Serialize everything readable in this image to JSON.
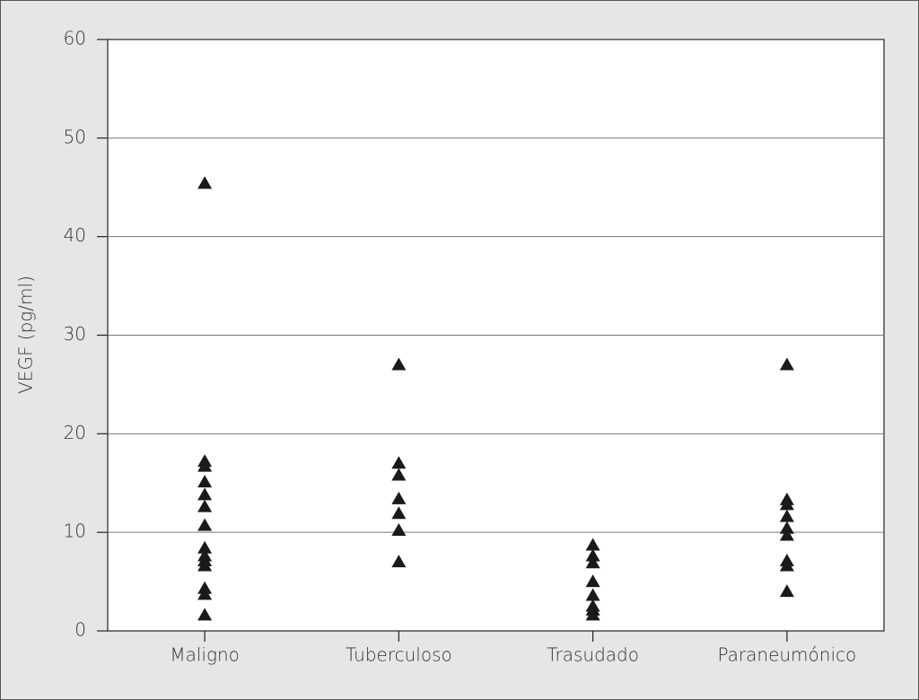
{
  "chart_data": {
    "type": "strip",
    "y_label": "VEGF (pg/ml)",
    "categories": [
      "Maligno",
      "Tuberculoso",
      "Trasudado",
      "Paraneumónico"
    ],
    "values": [
      [
        45.4,
        17.2,
        16.7,
        15.1,
        13.8,
        12.6,
        10.7,
        8.4,
        7.6,
        7.1,
        6.6,
        4.3,
        3.7,
        1.6
      ],
      [
        27.0,
        17.0,
        15.8,
        13.4,
        11.9,
        10.2,
        7.0
      ],
      [
        8.7,
        7.6,
        6.9,
        5.0,
        3.6,
        2.5,
        2.1,
        1.6
      ],
      [
        27.0,
        13.3,
        12.8,
        11.6,
        10.4,
        9.7,
        7.1,
        6.6,
        4.0
      ]
    ],
    "color": "#1a1a1a",
    "ylim": [
      0,
      60
    ],
    "yticks": [
      0,
      10,
      20,
      30,
      40,
      50,
      60
    ],
    "grid": true
  }
}
